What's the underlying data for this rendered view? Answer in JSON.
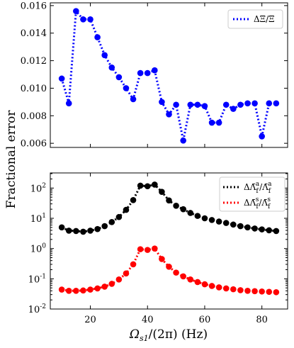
{
  "chart_data": [
    {
      "type": "line",
      "linestyle": "dotted",
      "marker": "circle",
      "series": [
        {
          "name": "ΔΞ/Ξ",
          "color": "#0000ff",
          "x": [
            10,
            12.5,
            15,
            17.5,
            20,
            22.5,
            25,
            27.5,
            30,
            32.5,
            35,
            37.5,
            40,
            42.5,
            45,
            47.5,
            50,
            52.5,
            55,
            57.5,
            60,
            62.5,
            65,
            67.5,
            70,
            72.5,
            75,
            77.5,
            80,
            82.5,
            85
          ],
          "y": [
            0.0107,
            0.0089,
            0.0156,
            0.015,
            0.015,
            0.0137,
            0.0124,
            0.0115,
            0.0108,
            0.01,
            0.0092,
            0.0111,
            0.0111,
            0.0113,
            0.009,
            0.0081,
            0.0088,
            0.0062,
            0.0088,
            0.0088,
            0.0087,
            0.0075,
            0.0075,
            0.0088,
            0.0085,
            0.0088,
            0.0089,
            0.0089,
            0.0065,
            0.0089,
            0.0089
          ]
        }
      ],
      "xlim": [
        6,
        89
      ],
      "ylim": [
        0.0057,
        0.0162
      ],
      "yticks": [
        "0.006",
        "0.008",
        "0.010",
        "0.012",
        "0.014",
        "0.016"
      ],
      "legend_position": "top-right",
      "grid": false
    },
    {
      "type": "line",
      "linestyle": "dotted",
      "marker": "circle",
      "yscale": "log",
      "series": [
        {
          "name": "ΔΛ̄ᶠᵃ/Λ̄ᶠᵃ",
          "color": "#000000",
          "x": [
            10,
            12.5,
            15,
            17.5,
            20,
            22.5,
            25,
            27.5,
            30,
            32.5,
            35,
            37.5,
            40,
            42.5,
            45,
            47.5,
            50,
            52.5,
            55,
            57.5,
            60,
            62.5,
            65,
            67.5,
            70,
            72.5,
            75,
            77.5,
            80,
            82.5,
            85
          ],
          "y": [
            5.0,
            3.9,
            3.8,
            3.6,
            3.9,
            4.4,
            5.5,
            7.5,
            11,
            19,
            40,
            120,
            115,
            130,
            75,
            39,
            26,
            20,
            15,
            12,
            10,
            8.8,
            7.8,
            7.0,
            6.2,
            5.5,
            5.0,
            4.6,
            4.3,
            4.0,
            3.8
          ]
        },
        {
          "name": "ΔΛ̄ᶠˢ/Λ̄ᶠˢ",
          "color": "#ff0000",
          "x": [
            10,
            12.5,
            15,
            17.5,
            20,
            22.5,
            25,
            27.5,
            30,
            32.5,
            35,
            37.5,
            40,
            42.5,
            45,
            47.5,
            50,
            52.5,
            55,
            57.5,
            60,
            62.5,
            65,
            67.5,
            70,
            72.5,
            75,
            77.5,
            80,
            82.5,
            85
          ],
          "y": [
            0.044,
            0.04,
            0.04,
            0.041,
            0.044,
            0.048,
            0.055,
            0.068,
            0.095,
            0.15,
            0.3,
            0.95,
            0.9,
            1.0,
            0.45,
            0.25,
            0.16,
            0.12,
            0.095,
            0.078,
            0.066,
            0.058,
            0.052,
            0.048,
            0.045,
            0.042,
            0.04,
            0.039,
            0.038,
            0.037,
            0.036
          ]
        }
      ],
      "xlim": [
        6,
        89
      ],
      "ylim_exp": [
        -2,
        2.5
      ],
      "yticks": [
        {
          "base": "10",
          "exp": "-2"
        },
        {
          "base": "10",
          "exp": "-1"
        },
        {
          "base": "10",
          "exp": "0"
        },
        {
          "base": "10",
          "exp": "1"
        },
        {
          "base": "10",
          "exp": "2"
        }
      ],
      "legend_position": "top-right",
      "grid": false
    }
  ],
  "shared": {
    "ylabel": "Fractional error",
    "xlabel_main": "Ω",
    "xlabel_sub": "s1",
    "xlabel_rest": "/(2π) (Hz)",
    "xticks": [
      "20",
      "40",
      "60",
      "80"
    ],
    "xtick_values": [
      20,
      40,
      60,
      80
    ]
  },
  "legend_top": {
    "label": "ΔΞ/Ξ"
  },
  "legend_bottom": {
    "black_num": "ΔΛ̄",
    "black_sub": "f",
    "black_sup": "a",
    "black_den": "/Λ̄",
    "red_num": "ΔΛ̄",
    "red_sub": "f",
    "red_sup": "s",
    "red_den": "/Λ̄"
  }
}
